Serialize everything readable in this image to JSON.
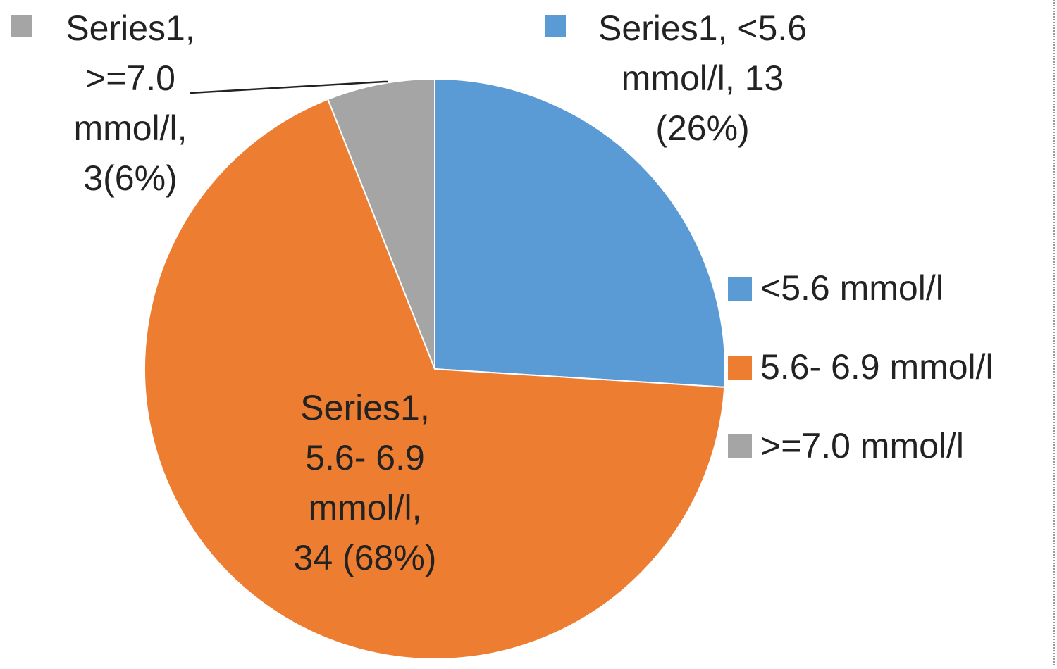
{
  "chart_data": {
    "type": "pie",
    "series": [
      {
        "name": "Series1",
        "values": [
          13,
          34,
          3
        ]
      }
    ],
    "categories": [
      "<5.6 mmol/l",
      "5.6- 6.9 mmol/l",
      ">=7.0 mmol/l"
    ],
    "percentages": [
      26,
      68,
      6
    ],
    "colors": [
      "#5B9BD5",
      "#ED7D31",
      "#A5A5A5"
    ],
    "data_labels": [
      [
        "Series1, <5.6",
        "mmol/l, 13",
        "(26%)"
      ],
      [
        "Series1,",
        "5.6- 6.9",
        "mmol/l,",
        "34 (68%)"
      ],
      [
        "Series1,",
        ">=7.0",
        "mmol/l,",
        "3(6%)"
      ]
    ],
    "legend": {
      "position": "right",
      "entries": [
        "<5.6 mmol/l",
        "5.6- 6.9 mmol/l",
        ">=7.0 mmol/l"
      ]
    },
    "title": ""
  }
}
